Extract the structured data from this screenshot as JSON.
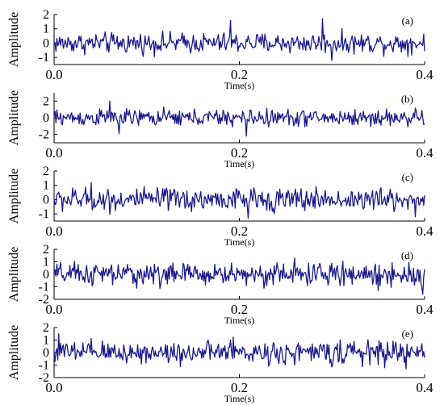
{
  "chart_data": [
    {
      "type": "line",
      "panel_label": "(a)",
      "xlabel": "Time(s)",
      "ylabel": "Amplitude",
      "xlim": [
        0,
        0.4
      ],
      "ylim": [
        -1.5,
        2
      ],
      "xticks": [
        "0.0",
        "0.2",
        "0.4"
      ],
      "yticks": [
        "2",
        "1",
        "0",
        "-1"
      ],
      "series": [
        {
          "color": "#1a1a8c",
          "samples": 400,
          "amplitude_rms": 0.35,
          "peak_times": [
            0.19,
            0.29,
            0.3
          ],
          "peak_values": [
            1.6,
            1.7,
            -1.2
          ]
        }
      ]
    },
    {
      "type": "line",
      "panel_label": "(b)",
      "xlabel": "Time(s)",
      "ylabel": "Amplitude",
      "xlim": [
        0,
        0.4
      ],
      "ylim": [
        -3,
        3
      ],
      "xticks": [
        "0.0",
        "0.2",
        "0.4"
      ],
      "yticks": [
        "2",
        "0",
        "-2"
      ],
      "series": [
        {
          "color": "#1a1a8c",
          "samples": 400,
          "amplitude_rms": 0.5,
          "peak_times": [
            0.06,
            0.07,
            0.208
          ],
          "peak_values": [
            2.0,
            -1.9,
            -2.2
          ]
        }
      ]
    },
    {
      "type": "line",
      "panel_label": "(c)",
      "xlabel": "Time(s)",
      "ylabel": "Amplitude",
      "xlim": [
        0,
        0.4
      ],
      "ylim": [
        -1.5,
        2
      ],
      "xticks": [
        "0.0",
        "0.2",
        "0.4"
      ],
      "yticks": [
        "2",
        "1",
        "0",
        "-1"
      ],
      "series": [
        {
          "color": "#1a1a8c",
          "samples": 400,
          "amplitude_rms": 0.4,
          "peak_times": [
            0.04,
            0.21,
            0.39
          ],
          "peak_values": [
            1.2,
            -1.3,
            -1.2
          ]
        }
      ]
    },
    {
      "type": "line",
      "panel_label": "(d)",
      "xlabel": "Time(s)",
      "ylabel": "Amplitude",
      "xlim": [
        0,
        0.4
      ],
      "ylim": [
        -2,
        2
      ],
      "xticks": [
        "0.0",
        "0.2",
        "0.4"
      ],
      "yticks": [
        "2",
        "1",
        "0",
        "-1",
        "-2"
      ],
      "series": [
        {
          "color": "#1a1a8c",
          "samples": 400,
          "amplitude_rms": 0.45,
          "peak_times": [
            0.26,
            0.35,
            0.398
          ],
          "peak_values": [
            1.3,
            -1.3,
            -1.6
          ]
        }
      ]
    },
    {
      "type": "line",
      "panel_label": "(e)",
      "xlabel": "Time(s)",
      "ylabel": "Amplitude",
      "xlim": [
        0,
        0.4
      ],
      "ylim": [
        -2,
        2
      ],
      "xticks": [
        "0.0",
        "0.2",
        "0.4"
      ],
      "yticks": [
        "2",
        "1",
        "0",
        "-1",
        "-2"
      ],
      "series": [
        {
          "color": "#1a1a8c",
          "samples": 400,
          "amplitude_rms": 0.45,
          "peak_times": [
            0.005,
            0.19,
            0.38
          ],
          "peak_values": [
            1.5,
            1.0,
            -1.3
          ]
        }
      ]
    }
  ]
}
